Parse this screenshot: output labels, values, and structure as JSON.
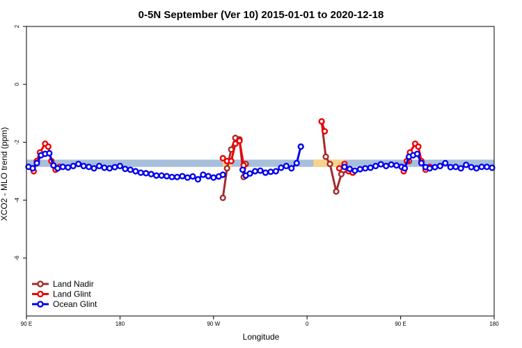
{
  "chart_data": {
    "type": "line",
    "title": "0-5N September (Ver 10)   2015-01-01 to 2020-12-18",
    "xlabel": "Longitude",
    "ylabel": "XCO2 - MLO trend (ppm)",
    "xlim": [
      -90,
      360
    ],
    "ylim": [
      -8,
      2
    ],
    "x_ticks": [
      {
        "value": -90,
        "label": "90 E"
      },
      {
        "value": 0,
        "label": "180"
      },
      {
        "value": 90,
        "label": "90 W"
      },
      {
        "value": 180,
        "label": "0"
      },
      {
        "value": 270,
        "label": "90 E"
      },
      {
        "value": 360,
        "label": "180"
      }
    ],
    "y_ticks": [
      {
        "value": 2,
        "label": "2"
      },
      {
        "value": 0,
        "label": "0"
      },
      {
        "value": -2,
        "label": "-2"
      },
      {
        "value": -4,
        "label": "-4"
      },
      {
        "value": -6,
        "label": "-6"
      }
    ],
    "reference_band": {
      "y_min": -2.85,
      "y_max": -2.6,
      "color": "#a8bfdc"
    },
    "highlight_segments": [
      {
        "x_min": 99,
        "x_max": 108,
        "color": "#f5d38a"
      },
      {
        "x_min": 186,
        "x_max": 216,
        "color": "#f5d38a"
      }
    ],
    "legend_position": "bottom-left",
    "series": [
      {
        "name": "Land Nadir",
        "color": "#a52a2a",
        "segments": [
          [
            {
              "x": -80,
              "y": -2.65
            }
          ],
          [
            {
              "x": 99,
              "y": -3.92
            },
            {
              "x": 103,
              "y": -2.9
            },
            {
              "x": 107,
              "y": -2.25
            },
            {
              "x": 111,
              "y": -1.85
            },
            {
              "x": 115,
              "y": -1.9
            },
            {
              "x": 119,
              "y": -3.2
            },
            {
              "x": 121,
              "y": -2.75
            }
          ],
          [
            {
              "x": 194,
              "y": -1.28
            },
            {
              "x": 198,
              "y": -2.5
            },
            {
              "x": 202,
              "y": -2.75
            },
            {
              "x": 208,
              "y": -3.7
            },
            {
              "x": 213,
              "y": -3.1
            },
            {
              "x": 220,
              "y": -2.95
            }
          ],
          [
            {
              "x": 278,
              "y": -2.65
            }
          ]
        ]
      },
      {
        "name": "Land Glint",
        "color": "#ee0000",
        "segments": [
          [
            {
              "x": -83,
              "y": -3.0
            },
            {
              "x": -80,
              "y": -2.65
            },
            {
              "x": -77,
              "y": -2.35
            },
            {
              "x": -72,
              "y": -2.05
            },
            {
              "x": -69,
              "y": -2.15
            },
            {
              "x": -66,
              "y": -2.65
            },
            {
              "x": -62,
              "y": -2.95
            },
            {
              "x": -58,
              "y": -2.85
            }
          ],
          [
            {
              "x": 99,
              "y": -2.55
            },
            {
              "x": 103,
              "y": -2.65
            },
            {
              "x": 107,
              "y": -2.65
            },
            {
              "x": 111,
              "y": -2.05
            },
            {
              "x": 115,
              "y": -1.95
            },
            {
              "x": 119,
              "y": -2.8
            }
          ],
          [
            {
              "x": 194,
              "y": -1.28
            },
            {
              "x": 197,
              "y": -1.62
            }
          ],
          [
            {
              "x": 211,
              "y": -2.9
            },
            {
              "x": 216,
              "y": -2.75
            },
            {
              "x": 220,
              "y": -3.0
            },
            {
              "x": 224,
              "y": -3.05
            }
          ],
          [
            {
              "x": 273,
              "y": -3.0
            },
            {
              "x": 276,
              "y": -2.65
            },
            {
              "x": 279,
              "y": -2.35
            },
            {
              "x": 284,
              "y": -2.05
            },
            {
              "x": 287,
              "y": -2.15
            },
            {
              "x": 290,
              "y": -2.65
            },
            {
              "x": 294,
              "y": -2.95
            },
            {
              "x": 298,
              "y": -2.85
            }
          ]
        ]
      },
      {
        "name": "Ocean Glint",
        "color": "#0000ee",
        "segments": [
          [
            {
              "x": -88,
              "y": -2.85
            },
            {
              "x": -84,
              "y": -2.9
            },
            {
              "x": -80,
              "y": -2.72
            },
            {
              "x": -76,
              "y": -2.45
            },
            {
              "x": -72,
              "y": -2.4
            },
            {
              "x": -68,
              "y": -2.38
            },
            {
              "x": -64,
              "y": -2.8
            },
            {
              "x": -60,
              "y": -2.9
            },
            {
              "x": -55,
              "y": -2.85
            },
            {
              "x": -50,
              "y": -2.87
            },
            {
              "x": -45,
              "y": -2.82
            },
            {
              "x": -40,
              "y": -2.75
            },
            {
              "x": -35,
              "y": -2.82
            },
            {
              "x": -30,
              "y": -2.85
            },
            {
              "x": -25,
              "y": -2.9
            },
            {
              "x": -20,
              "y": -2.82
            },
            {
              "x": -15,
              "y": -2.88
            },
            {
              "x": -10,
              "y": -2.9
            },
            {
              "x": -5,
              "y": -2.86
            },
            {
              "x": 0,
              "y": -2.82
            },
            {
              "x": 5,
              "y": -2.92
            },
            {
              "x": 10,
              "y": -2.95
            },
            {
              "x": 15,
              "y": -3.0
            },
            {
              "x": 20,
              "y": -3.05
            },
            {
              "x": 25,
              "y": -3.07
            },
            {
              "x": 30,
              "y": -3.1
            },
            {
              "x": 35,
              "y": -3.15
            },
            {
              "x": 40,
              "y": -3.15
            },
            {
              "x": 45,
              "y": -3.17
            },
            {
              "x": 50,
              "y": -3.2
            },
            {
              "x": 55,
              "y": -3.2
            },
            {
              "x": 60,
              "y": -3.17
            },
            {
              "x": 65,
              "y": -3.22
            },
            {
              "x": 70,
              "y": -3.18
            },
            {
              "x": 75,
              "y": -3.28
            },
            {
              "x": 80,
              "y": -3.12
            },
            {
              "x": 85,
              "y": -3.17
            },
            {
              "x": 90,
              "y": -3.22
            },
            {
              "x": 95,
              "y": -3.18
            },
            {
              "x": 99,
              "y": -3.12
            }
          ],
          [
            {
              "x": 118,
              "y": -2.95
            },
            {
              "x": 121,
              "y": -3.15
            },
            {
              "x": 125,
              "y": -3.08
            },
            {
              "x": 130,
              "y": -3.0
            },
            {
              "x": 135,
              "y": -2.98
            },
            {
              "x": 140,
              "y": -3.05
            },
            {
              "x": 145,
              "y": -3.02
            },
            {
              "x": 150,
              "y": -3.0
            },
            {
              "x": 155,
              "y": -2.88
            },
            {
              "x": 160,
              "y": -2.82
            },
            {
              "x": 165,
              "y": -2.9
            },
            {
              "x": 170,
              "y": -2.72
            },
            {
              "x": 174,
              "y": -2.15
            }
          ],
          [
            {
              "x": 216,
              "y": -2.85
            },
            {
              "x": 221,
              "y": -2.92
            },
            {
              "x": 226,
              "y": -2.98
            },
            {
              "x": 231,
              "y": -2.93
            },
            {
              "x": 236,
              "y": -2.9
            },
            {
              "x": 241,
              "y": -2.88
            },
            {
              "x": 246,
              "y": -2.82
            },
            {
              "x": 251,
              "y": -2.76
            },
            {
              "x": 256,
              "y": -2.82
            },
            {
              "x": 261,
              "y": -2.77
            },
            {
              "x": 266,
              "y": -2.8
            },
            {
              "x": 271,
              "y": -2.85
            },
            {
              "x": 274,
              "y": -2.9
            },
            {
              "x": 278,
              "y": -2.5
            },
            {
              "x": 282,
              "y": -2.45
            },
            {
              "x": 286,
              "y": -2.4
            },
            {
              "x": 290,
              "y": -2.72
            },
            {
              "x": 294,
              "y": -2.86
            },
            {
              "x": 298,
              "y": -2.9
            },
            {
              "x": 303,
              "y": -2.86
            },
            {
              "x": 308,
              "y": -2.82
            },
            {
              "x": 313,
              "y": -2.72
            },
            {
              "x": 318,
              "y": -2.86
            },
            {
              "x": 323,
              "y": -2.85
            },
            {
              "x": 328,
              "y": -2.9
            },
            {
              "x": 333,
              "y": -2.78
            },
            {
              "x": 338,
              "y": -2.86
            },
            {
              "x": 343,
              "y": -2.9
            },
            {
              "x": 348,
              "y": -2.85
            },
            {
              "x": 353,
              "y": -2.85
            },
            {
              "x": 358,
              "y": -2.88
            }
          ]
        ]
      }
    ]
  }
}
